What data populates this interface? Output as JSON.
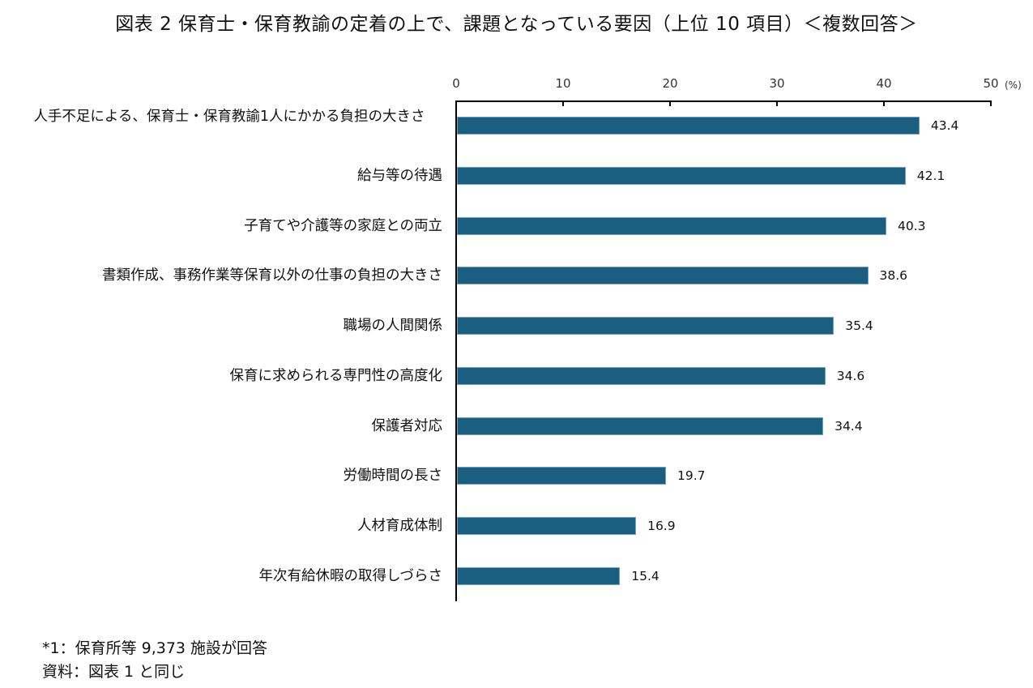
{
  "title": "図表 2  保育士・保育教諭の定着の上で、課題となっている要因（上位 10 項目）＜複数回答＞",
  "axis": {
    "ticks": [
      "0",
      "10",
      "20",
      "30",
      "40",
      "50"
    ],
    "unit": "(%)"
  },
  "footnotes": {
    "note1": "*1：保育所等 9,373 施設が回答",
    "source": "資料：図表 1 と同じ"
  },
  "colors": {
    "bar": "#1a5f80",
    "axis": "#000000",
    "text": "#111111"
  },
  "chart_data": {
    "type": "bar",
    "orientation": "horizontal",
    "title": "図表 2  保育士・保育教諭の定着の上で、課題となっている要因（上位 10 項目）＜複数回答＞",
    "xlabel": "(%)",
    "ylabel": "",
    "xlim": [
      0,
      50
    ],
    "x_ticks": [
      0,
      10,
      20,
      30,
      40,
      50
    ],
    "axis_position": "top",
    "grid": false,
    "legend": null,
    "categories": [
      "人手不足による、保育士・保育教諭1人にかかる負担の大きさ",
      "給与等の待遇",
      "子育てや介護等の家庭との両立",
      "書類作成、事務作業等保育以外の仕事の負担の大きさ",
      "職場の人間関係",
      "保育に求められる専門性の高度化",
      "保護者対応",
      "労働時間の長さ",
      "人材育成体制",
      "年次有給休暇の取得しづらさ"
    ],
    "values": [
      43.4,
      42.1,
      40.3,
      38.6,
      35.4,
      34.6,
      34.4,
      19.7,
      16.9,
      15.4
    ],
    "value_labels": [
      "43.4",
      "42.1",
      "40.3",
      "38.6",
      "35.4",
      "34.6",
      "34.4",
      "19.7",
      "16.9",
      "15.4"
    ],
    "annotations": [
      "*1：保育所等 9,373 施設が回答",
      "資料：図表 1 と同じ"
    ]
  }
}
